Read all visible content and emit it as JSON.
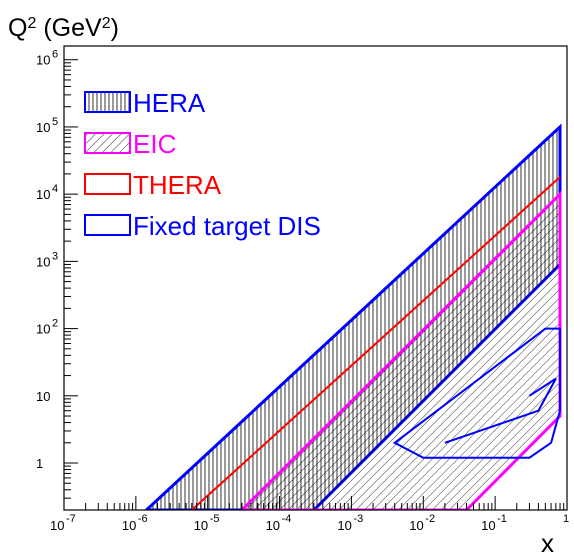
{
  "chart_data": {
    "type": "area",
    "title": "",
    "xlabel": "x",
    "ylabel": "Q² (GeV²)",
    "xscale": "log",
    "yscale": "log",
    "xlim": [
      1e-07,
      1
    ],
    "ylim": [
      0.2,
      1600000
    ],
    "grid": false,
    "legend_position": "top-left",
    "x_ticks": [
      {
        "value": 1e-07,
        "base": "10",
        "exp": "-7"
      },
      {
        "value": 1e-06,
        "base": "10",
        "exp": "-6"
      },
      {
        "value": 1e-05,
        "base": "10",
        "exp": "-5"
      },
      {
        "value": 0.0001,
        "base": "10",
        "exp": "-4"
      },
      {
        "value": 0.001,
        "base": "10",
        "exp": "-3"
      },
      {
        "value": 0.01,
        "base": "10",
        "exp": "-2"
      },
      {
        "value": 0.1,
        "base": "10",
        "exp": "-1"
      },
      {
        "value": 1,
        "base": "",
        "exp": "1"
      }
    ],
    "y_ticks": [
      {
        "value": 1,
        "base": "1",
        "exp": ""
      },
      {
        "value": 10,
        "base": "10",
        "exp": ""
      },
      {
        "value": 100,
        "base": "10",
        "exp": "2"
      },
      {
        "value": 1000,
        "base": "10",
        "exp": "3"
      },
      {
        "value": 10000,
        "base": "10",
        "exp": "4"
      },
      {
        "value": 100000,
        "base": "10",
        "exp": "5"
      },
      {
        "value": 1000000,
        "base": "10",
        "exp": "6"
      }
    ],
    "series": [
      {
        "name": "HERA",
        "color": "#0000ff",
        "fill": "vertical-hatch",
        "polygon": [
          [
            1.4e-06,
            0.2
          ],
          [
            0.0003,
            0.2
          ],
          [
            0.8,
            900
          ],
          [
            0.8,
            100000
          ]
        ]
      },
      {
        "name": "EIC",
        "color": "#ff00ff",
        "fill": "diagonal-hatch",
        "polygon": [
          [
            3e-05,
            0.2
          ],
          [
            0.04,
            0.2
          ],
          [
            0.8,
            5
          ],
          [
            0.8,
            10000
          ]
        ]
      },
      {
        "name": "THERA",
        "color": "#ff0000",
        "fill": "none",
        "polygon": [
          [
            6e-06,
            0.2
          ],
          [
            0.8,
            18000
          ]
        ]
      },
      {
        "name": "Fixed target DIS",
        "color": "#0000ff",
        "fill": "none",
        "polygon": [
          [
            0.004,
            2
          ],
          [
            0.5,
            100
          ],
          [
            0.8,
            100
          ],
          [
            0.8,
            6
          ],
          [
            0.6,
            2
          ],
          [
            0.3,
            1.2
          ],
          [
            0.01,
            1.2
          ]
        ],
        "inner_polyline": [
          [
            0.3,
            10
          ],
          [
            0.7,
            18
          ],
          [
            0.4,
            6
          ],
          [
            0.02,
            2
          ]
        ]
      }
    ]
  }
}
